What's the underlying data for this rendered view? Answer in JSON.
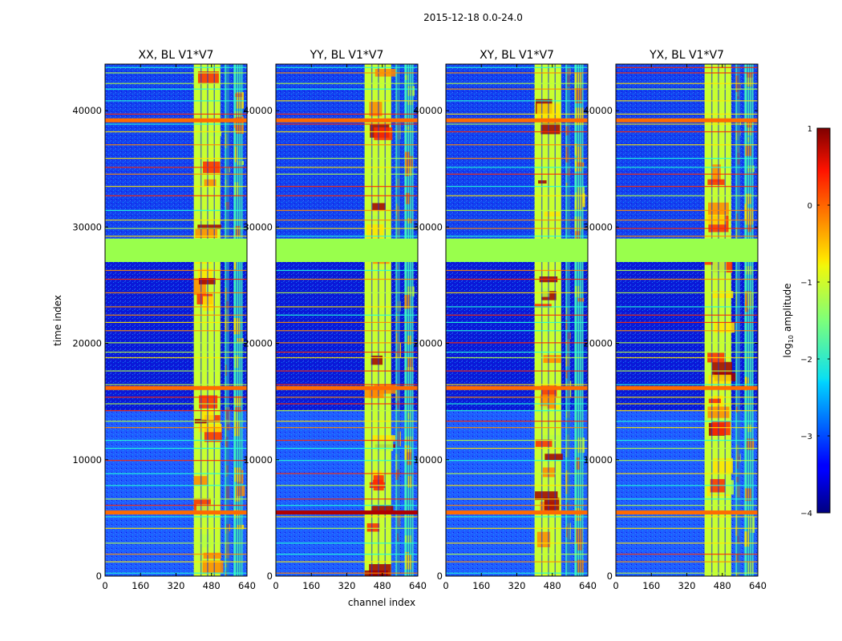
{
  "chart_data": {
    "type": "heatmap",
    "suptitle": "2015-12-18 0.0-24.0",
    "xlabel": "channel index",
    "ylabel": "time index",
    "xlim": [
      0,
      640
    ],
    "ylim": [
      0,
      44000
    ],
    "x_ticks": [
      0,
      160,
      320,
      480,
      640
    ],
    "y_ticks": [
      0,
      10000,
      20000,
      30000,
      40000
    ],
    "x_tick_labels": [
      "0",
      "160",
      "320",
      "480",
      "640"
    ],
    "y_tick_labels": [
      "0",
      "10000",
      "20000",
      "30000",
      "40000"
    ],
    "panels": [
      {
        "title": "XX, BL V1*V7",
        "pol": "XX"
      },
      {
        "title": "YY, BL V1*V7",
        "pol": "YY"
      },
      {
        "title": "XY, BL V1*V7",
        "pol": "XY"
      },
      {
        "title": "YX, BL V1*V7",
        "pol": "YX"
      }
    ],
    "colorbar": {
      "label": "log10 amplitude",
      "label_base": "log",
      "label_sub": "10",
      "label_rest": " amplitude",
      "range": [
        -4,
        1
      ],
      "ticks": [
        -4,
        -3,
        -2,
        -1,
        0,
        1
      ],
      "tick_labels": [
        "−4",
        "−3",
        "−2",
        "−1",
        "0",
        "1"
      ],
      "colormap": "jet"
    },
    "flagged_time_ranges": [
      [
        27000,
        29000
      ]
    ],
    "strong_channel_bands": [
      [
        400,
        520
      ],
      [
        540,
        560
      ],
      [
        580,
        620
      ]
    ]
  }
}
